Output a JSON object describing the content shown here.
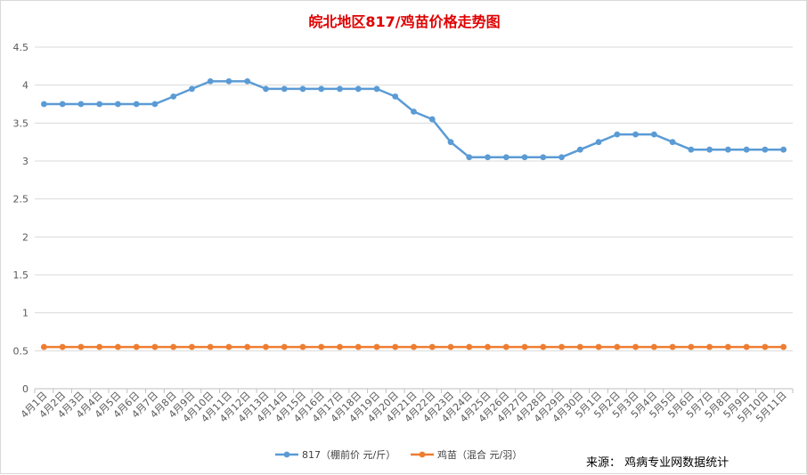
{
  "chart_data": {
    "type": "line",
    "title": "皖北地区817/鸡苗价格走势图",
    "title_color": "#e00000",
    "categories": [
      "4月1日",
      "4月2日",
      "4月3日",
      "4月4日",
      "4月5日",
      "4月6日",
      "4月7日",
      "4月8日",
      "4月9日",
      "4月10日",
      "4月11日",
      "4月12日",
      "4月13日",
      "4月14日",
      "4月15日",
      "4月16日",
      "4月17日",
      "4月18日",
      "4月19日",
      "4月20日",
      "4月21日",
      "4月22日",
      "4月23日",
      "4月24日",
      "4月25日",
      "4月26日",
      "4月27日",
      "4月28日",
      "4月29日",
      "4月30日",
      "5月1日",
      "5月2日",
      "5月3日",
      "5月4日",
      "5月5日",
      "5月6日",
      "5月7日",
      "5月8日",
      "5月9日",
      "5月10日",
      "5月11日"
    ],
    "series": [
      {
        "name": "817（棚前价 元/斤）",
        "color": "#5b9bd5",
        "values": [
          3.75,
          3.75,
          3.75,
          3.75,
          3.75,
          3.75,
          3.75,
          3.85,
          3.95,
          4.05,
          4.05,
          4.05,
          3.95,
          3.95,
          3.95,
          3.95,
          3.95,
          3.95,
          3.95,
          3.85,
          3.65,
          3.55,
          3.25,
          3.05,
          3.05,
          3.05,
          3.05,
          3.05,
          3.05,
          3.15,
          3.25,
          3.35,
          3.35,
          3.35,
          3.25,
          3.15,
          3.15,
          3.15,
          3.15,
          3.15,
          3.15
        ]
      },
      {
        "name": "鸡苗（混合 元/羽）",
        "color": "#ed7d31",
        "values": [
          0.55,
          0.55,
          0.55,
          0.55,
          0.55,
          0.55,
          0.55,
          0.55,
          0.55,
          0.55,
          0.55,
          0.55,
          0.55,
          0.55,
          0.55,
          0.55,
          0.55,
          0.55,
          0.55,
          0.55,
          0.55,
          0.55,
          0.55,
          0.55,
          0.55,
          0.55,
          0.55,
          0.55,
          0.55,
          0.55,
          0.55,
          0.55,
          0.55,
          0.55,
          0.55,
          0.55,
          0.55,
          0.55,
          0.55,
          0.55,
          0.55
        ]
      }
    ],
    "ylim": [
      0,
      4.5
    ],
    "yticks": [
      "0",
      "0.5",
      "1",
      "1.5",
      "2",
      "2.5",
      "3",
      "3.5",
      "4",
      "4.5"
    ],
    "grid": true,
    "legend_position": "bottom",
    "source_note": "来源：  鸡病专业网数据统计"
  }
}
